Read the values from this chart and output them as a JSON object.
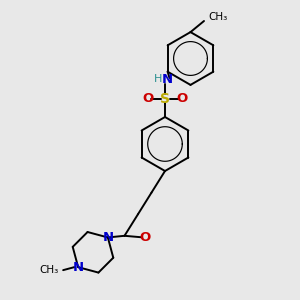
{
  "bg_color": "#e8e8e8",
  "bond_color": "#000000",
  "N_color": "#0000cc",
  "O_color": "#cc0000",
  "S_color": "#bbaa00",
  "H_color": "#2a9090",
  "lw": 1.4,
  "xlim": [
    0,
    10
  ],
  "ylim": [
    0,
    10
  ]
}
